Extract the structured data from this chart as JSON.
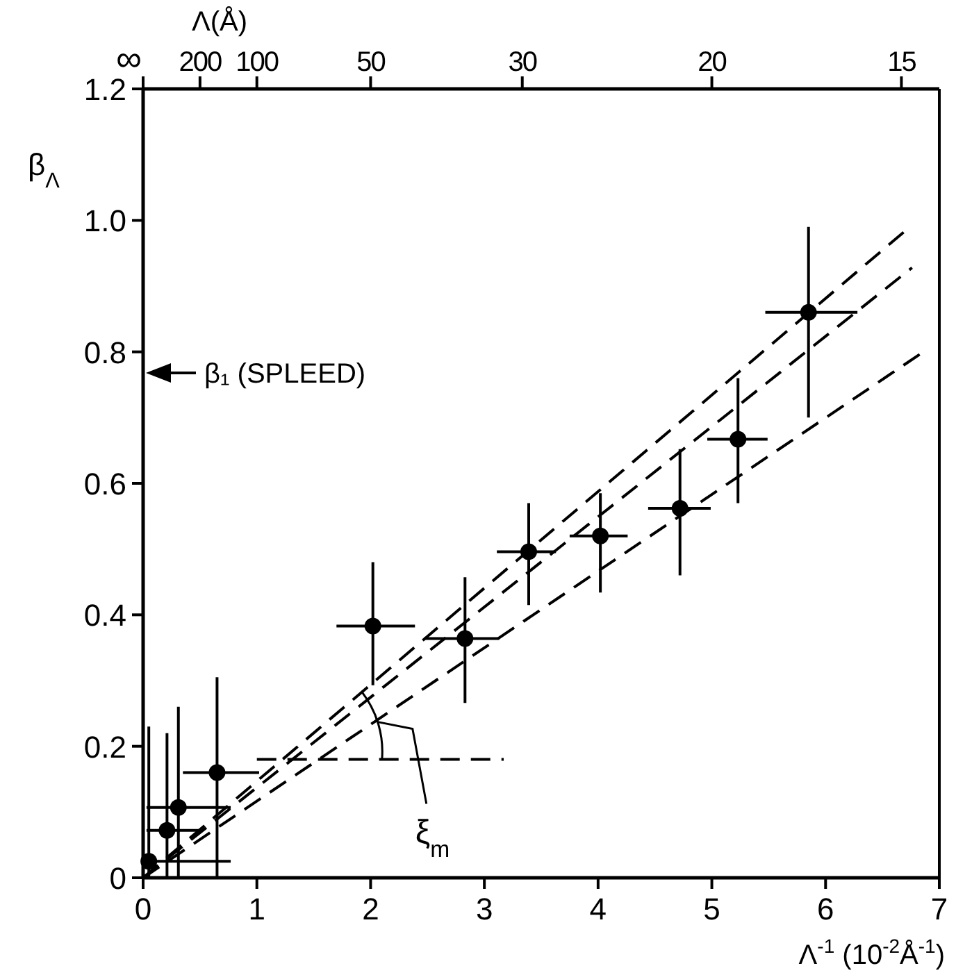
{
  "chart_data": {
    "type": "scatter",
    "xlabel": "Λ$^{-1}$ (10$^{-2}$Å$^{-1}$)",
    "ylabel": "β$_{Λ}$",
    "x2label": "Λ(Å)",
    "xlim": [
      0,
      7
    ],
    "xticks": [
      0,
      1,
      2,
      3,
      4,
      5,
      6,
      7
    ],
    "ylim": [
      0,
      1.2
    ],
    "yticks": [
      0,
      0.2,
      0.4,
      0.6,
      0.8,
      {
        "value": 1,
        "label": "1.0"
      },
      1.2
    ],
    "grid": false,
    "marker": "circle",
    "series": [
      {
        "color": "#000000",
        "x": [
          0.05,
          0.21,
          0.31,
          0.65,
          2.02,
          2.83,
          3.39,
          4.02,
          4.72,
          5.23,
          5.85
        ],
        "values": [
          0.025,
          0.072,
          0.107,
          0.16,
          0.383,
          0.364,
          0.496,
          0.52,
          0.562,
          0.667,
          0.86
        ],
        "errors": [
          [
            0,
            0.23
          ],
          [
            0,
            0.22
          ],
          [
            0,
            0.26
          ],
          [
            0,
            0.305
          ],
          [
            0.293,
            0.48
          ],
          [
            0.266,
            0.457
          ],
          [
            0.415,
            0.57
          ],
          [
            0.434,
            0.585
          ],
          [
            0.46,
            0.652
          ],
          [
            0.57,
            0.76
          ],
          [
            0.7,
            0.99
          ]
        ],
        "xerrors": [
          [
            0.02,
            0.77
          ],
          [
            0.03,
            0.5
          ],
          [
            0.03,
            0.77
          ],
          [
            0.35,
            1.02
          ],
          [
            1.7,
            2.39
          ],
          [
            2.47,
            3.13
          ],
          [
            3.11,
            3.63
          ],
          [
            3.75,
            4.26
          ],
          [
            4.44,
            4.99
          ],
          [
            4.96,
            5.49
          ],
          [
            5.47,
            6.28
          ]
        ]
      },
      {
        "type": "line",
        "color": "#000000",
        "line_style": "dashed",
        "marker": "none",
        "x": [
          0,
          6.76
        ],
        "values": [
          0,
          0.928
        ]
      },
      {
        "type": "line",
        "color": "#000000",
        "line_style": "dashed",
        "marker": "none",
        "x": [
          0,
          6.72
        ],
        "values": [
          0,
          0.987
        ]
      },
      {
        "type": "line",
        "color": "#000000",
        "line_style": "dashed",
        "marker": "none",
        "x": [
          0,
          6.86
        ],
        "values": [
          0,
          0.8
        ]
      },
      {
        "type": "line",
        "color": "#000000",
        "line_style": "dashed",
        "marker": "none",
        "x": [
          1.0,
          3.17
        ],
        "values": [
          0.18,
          0.18
        ]
      }
    ],
    "annotations": [
      "β₁ (SPLEED)",
      {
        "text": "ξ$_{m}$",
        "x": 2.1,
        "y": 0.18
      },
      "∞",
      "200",
      "100",
      "50",
      "30",
      "20",
      "15"
    ]
  }
}
